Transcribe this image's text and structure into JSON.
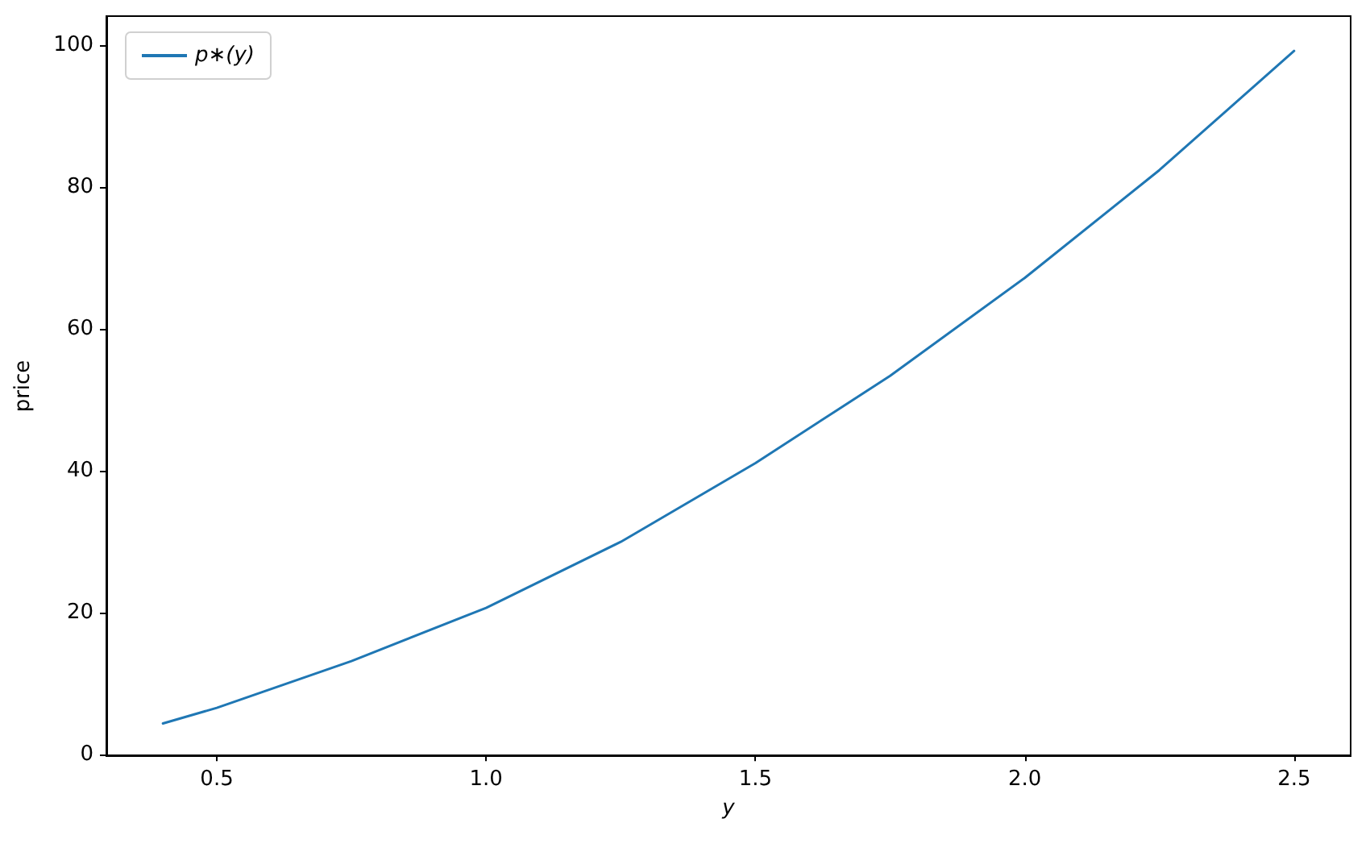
{
  "chart_data": {
    "type": "line",
    "xlabel": "y",
    "ylabel": "price",
    "x": [
      0.4,
      0.5,
      0.75,
      1.0,
      1.25,
      1.5,
      1.75,
      2.0,
      2.25,
      2.5
    ],
    "series": [
      {
        "name": "p∗(y)",
        "color": "#1f77b4",
        "values": [
          4.4,
          6.6,
          13.2,
          20.7,
          30.0,
          41.1,
          53.4,
          67.2,
          82.4,
          99.2
        ]
      }
    ],
    "xlim": [
      0.295,
      2.605
    ],
    "xticks": [
      0.5,
      {
        "value": 1,
        "label": "1.0"
      },
      1.5,
      {
        "value": 2,
        "label": "2.0"
      },
      2.5
    ],
    "ylim": [
      -0.2,
      104.1
    ],
    "yticks": [
      0,
      20,
      40,
      60,
      80,
      100
    ],
    "grid": false,
    "legend": "top left",
    "marker": "none",
    "line_style": "solid"
  }
}
